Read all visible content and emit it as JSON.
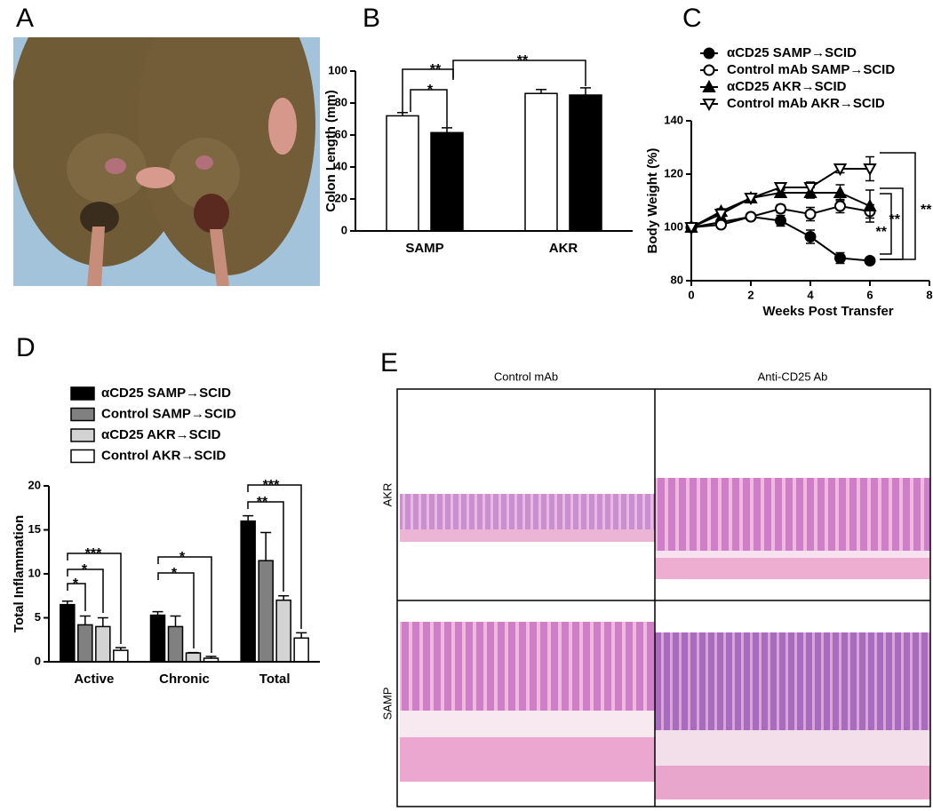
{
  "panel_labels": [
    "A",
    "B",
    "C",
    "D",
    "E"
  ],
  "chart_data": [
    {
      "type": "bar",
      "ylabel": "Colon Length (mm)",
      "categories": [
        "SAMP",
        "AKR"
      ],
      "series": [
        {
          "color": "#ffffff",
          "values": [
            72,
            86
          ],
          "errors": [
            2,
            2.5
          ]
        },
        {
          "color": "#000000",
          "values": [
            61.5,
            85
          ],
          "errors": [
            3,
            4.5
          ]
        }
      ],
      "ylim": [
        0,
        100
      ],
      "yticks": [
        0,
        20,
        40,
        60,
        80,
        100
      ],
      "annotations": [
        "**",
        "*",
        "**"
      ]
    },
    {
      "type": "line",
      "xlabel": "Weeks Post Transfer",
      "ylabel": "Body Weight (%)",
      "x": [
        0,
        1,
        2,
        3,
        4,
        5,
        6
      ],
      "series": [
        {
          "name": "αCD25 SAMP→SCID",
          "color": "#000000",
          "marker": "circle",
          "filled": true,
          "values": [
            100,
            102,
            104,
            102.5,
            96.5,
            88.5,
            87.5
          ],
          "errors": [
            1,
            1,
            1,
            2,
            2.5,
            2,
            1
          ]
        },
        {
          "name": "Control mAb SAMP→SCID",
          "color": "#000000",
          "marker": "circle",
          "filled": false,
          "values": [
            100,
            101,
            104,
            107,
            105,
            108,
            106
          ],
          "errors": [
            1,
            1,
            1,
            1.5,
            2.5,
            2.5,
            2.5
          ]
        },
        {
          "name": "αCD25 AKR→SCID",
          "color": "#000000",
          "marker": "triangle",
          "filled": true,
          "values": [
            100,
            106,
            111,
            113,
            113,
            113,
            108
          ],
          "errors": [
            1,
            1,
            1,
            1.5,
            2,
            3,
            6
          ]
        },
        {
          "name": "Control mAb AKR→SCID",
          "color": "#000000",
          "marker": "triangle-down",
          "filled": false,
          "values": [
            100,
            105,
            111,
            115,
            115,
            122,
            122
          ],
          "errors": [
            1,
            1,
            1,
            1,
            2,
            1.5,
            4.5
          ]
        }
      ],
      "xlim": [
        0,
        8
      ],
      "xticks": [
        0,
        2,
        4,
        6,
        8
      ],
      "ylim": [
        80,
        140
      ],
      "yticks": [
        80,
        100,
        120,
        140
      ],
      "annotations": [
        "**",
        "**",
        "**"
      ]
    },
    {
      "type": "bar",
      "ylabel": "Total Inflammation",
      "categories": [
        "Active",
        "Chronic",
        "Total"
      ],
      "series": [
        {
          "name": "αCD25 SAMP→SCID",
          "color": "#000000",
          "values": [
            6.5,
            5.3,
            16.0
          ],
          "errors": [
            0.4,
            0.4,
            0.6
          ]
        },
        {
          "name": "Control SAMP→SCID",
          "color": "#808080",
          "values": [
            4.2,
            4.0,
            11.5
          ],
          "errors": [
            1.0,
            1.2,
            3.2
          ]
        },
        {
          "name": "αCD25 AKR→SCID",
          "color": "#d3d3d3",
          "values": [
            4.0,
            1.0,
            7.0
          ],
          "errors": [
            1.0,
            0.05,
            0.5
          ]
        },
        {
          "name": "Control  AKR→SCID",
          "color": "#ffffff",
          "values": [
            1.3,
            0.4,
            2.7
          ],
          "errors": [
            0.3,
            0.2,
            0.6
          ]
        }
      ],
      "ylim": [
        0,
        20
      ],
      "yticks": [
        0,
        5,
        10,
        15,
        20
      ],
      "annotations": [
        "***",
        "*",
        "*",
        "*",
        "*",
        "***",
        "**"
      ]
    }
  ],
  "histology": {
    "columns": [
      "Control mAb",
      "Anti-CD25 Ab"
    ],
    "rows": [
      "AKR",
      "SAMP"
    ]
  }
}
